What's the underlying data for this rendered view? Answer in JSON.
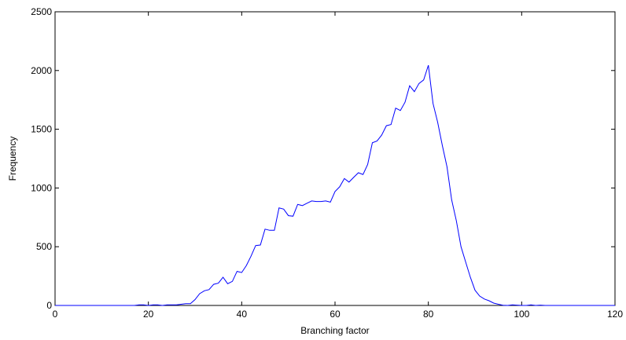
{
  "chart_data": {
    "type": "line",
    "title": "",
    "xlabel": "Branching factor",
    "ylabel": "Frequency",
    "xlim": [
      0,
      120
    ],
    "ylim": [
      0,
      2500
    ],
    "xticks": [
      "0",
      "20",
      "40",
      "60",
      "80",
      "100",
      "120"
    ],
    "yticks": [
      "0",
      "500",
      "1000",
      "1500",
      "2000",
      "2500"
    ],
    "grid": false,
    "legend": "none",
    "line_color": "#0000ff",
    "series": [
      {
        "x": [
          0,
          17,
          18,
          19,
          20,
          21,
          22,
          23,
          24,
          25,
          26,
          27,
          28,
          29,
          30,
          31,
          32,
          33,
          34,
          35,
          36,
          37,
          38,
          39,
          40,
          41,
          42,
          43,
          44,
          45,
          46,
          47,
          48,
          49,
          50,
          51,
          52,
          53,
          54,
          55,
          56,
          57,
          58,
          59,
          60,
          61,
          62,
          63,
          64,
          65,
          66,
          67,
          68,
          69,
          70,
          71,
          72,
          73,
          74,
          75,
          76,
          77,
          78,
          79,
          80,
          81,
          82,
          83,
          84,
          85,
          86,
          87,
          88,
          89,
          90,
          91,
          92,
          93,
          94,
          95,
          96,
          97,
          98,
          99,
          100,
          101,
          102,
          103,
          104,
          105,
          120
        ],
        "y": [
          0,
          0,
          5,
          5,
          0,
          5,
          5,
          0,
          5,
          5,
          5,
          10,
          15,
          15,
          50,
          100,
          125,
          135,
          180,
          190,
          240,
          185,
          205,
          290,
          280,
          340,
          420,
          510,
          515,
          650,
          640,
          640,
          830,
          820,
          765,
          760,
          860,
          850,
          870,
          890,
          885,
          885,
          890,
          880,
          970,
          1010,
          1080,
          1050,
          1090,
          1130,
          1115,
          1200,
          1385,
          1400,
          1450,
          1530,
          1540,
          1680,
          1660,
          1730,
          1870,
          1820,
          1890,
          1920,
          2045,
          1720,
          1560,
          1360,
          1180,
          900,
          720,
          500,
          370,
          240,
          130,
          80,
          55,
          40,
          20,
          10,
          2,
          0,
          5,
          3,
          0,
          0,
          5,
          0,
          3,
          0,
          0
        ]
      }
    ]
  }
}
